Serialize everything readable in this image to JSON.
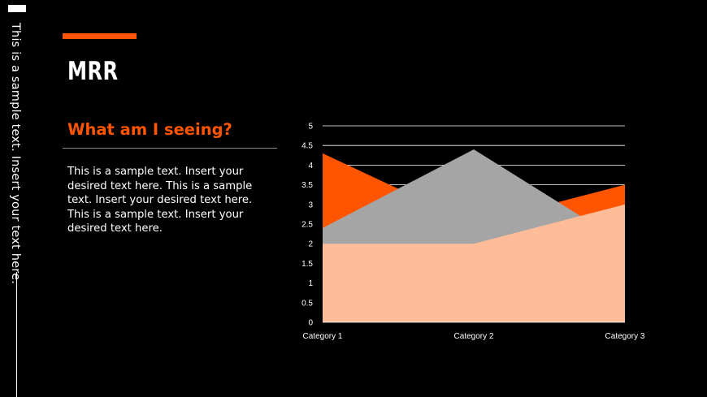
{
  "sidebar": {
    "vertical_text": "This is a sample text. Insert your text here."
  },
  "slide": {
    "title": "MRR",
    "subtitle": "What am I seeing?",
    "body": "This is a sample text. Insert your desired text here. This is a sample text. Insert your desired text here. This is a sample text. Insert your desired text here."
  },
  "colors": {
    "accent": "#FF5500",
    "series1": "#FF5500",
    "series2": "#A5A5A5",
    "series3": "#FFBC99",
    "background": "#000000",
    "gridline": "#FFFFFF"
  },
  "chart_data": {
    "type": "area",
    "categories": [
      "Category 1",
      "Category 2",
      "Category 3"
    ],
    "series": [
      {
        "values": [
          4.3,
          2.5,
          3.5
        ]
      },
      {
        "values": [
          2.4,
          4.4,
          2.0
        ]
      },
      {
        "values": [
          2.0,
          2.0,
          3.0
        ]
      }
    ],
    "ylim": [
      0,
      5
    ],
    "yticks": [
      "0",
      "0.5",
      "1",
      "1.5",
      "2",
      "2.5",
      "3",
      "3.5",
      "4",
      "4.5",
      "5"
    ],
    "grid": true,
    "legend": "none"
  }
}
